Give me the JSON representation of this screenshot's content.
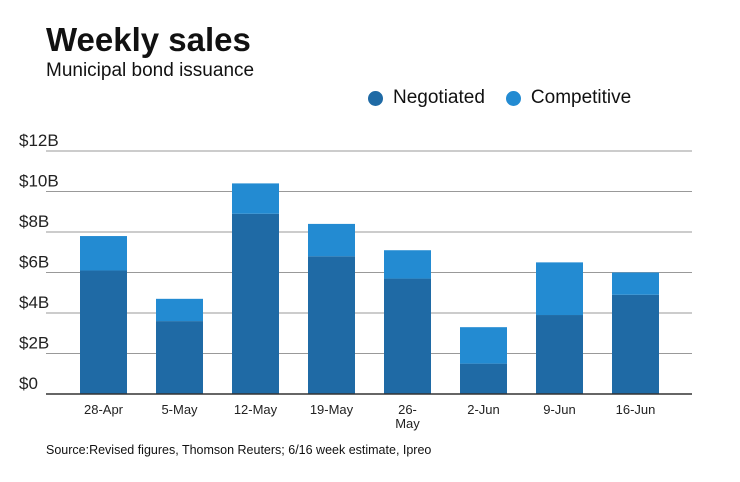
{
  "header": {
    "title": "Weekly sales",
    "subtitle": "Municipal bond issuance"
  },
  "source": "Source:Revised figures, Thomson Reuters; 6/16 week estimate, Ipreo",
  "colors": {
    "negotiated": "#1f6aa5",
    "competitive": "#238bd2",
    "grid": "#999999",
    "axis": "#333333"
  },
  "chart_data": {
    "type": "bar",
    "stacked": true,
    "title": "Weekly sales",
    "subtitle": "Municipal bond issuance",
    "xlabel": "",
    "ylabel": "",
    "ylim": [
      0,
      12
    ],
    "unit": "B",
    "grid": true,
    "legend_position": "top-right",
    "yticks": [
      {
        "value": 0,
        "label": "$0"
      },
      {
        "value": 2,
        "label": "$2B"
      },
      {
        "value": 4,
        "label": "$4B"
      },
      {
        "value": 6,
        "label": "$6B"
      },
      {
        "value": 8,
        "label": "$8B"
      },
      {
        "value": 10,
        "label": "$10B"
      },
      {
        "value": 12,
        "label": "$12B"
      }
    ],
    "categories": [
      [
        "28-Apr"
      ],
      [
        "5-May"
      ],
      [
        "12-May"
      ],
      [
        "19-May"
      ],
      [
        "26-",
        "May"
      ],
      [
        "2-Jun"
      ],
      [
        "9-Jun"
      ],
      [
        "16-Jun"
      ]
    ],
    "series": [
      {
        "name": "Negotiated",
        "values": [
          6.1,
          3.6,
          8.9,
          6.8,
          5.7,
          1.5,
          3.9,
          4.9
        ]
      },
      {
        "name": "Competitive",
        "values": [
          1.7,
          1.1,
          1.5,
          1.6,
          1.4,
          1.8,
          2.6,
          1.1
        ]
      }
    ]
  }
}
